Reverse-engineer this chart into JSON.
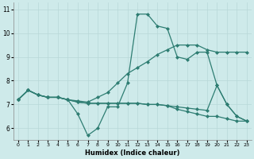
{
  "title": "",
  "xlabel": "Humidex (Indice chaleur)",
  "background_color": "#ceeaea",
  "line_color": "#2e7d72",
  "grid_color": "#b8d8d8",
  "xlim": [
    -0.5,
    23.5
  ],
  "ylim": [
    5.5,
    11.3
  ],
  "yticks": [
    6,
    7,
    8,
    9,
    10,
    11
  ],
  "xticks": [
    0,
    1,
    2,
    3,
    4,
    5,
    6,
    7,
    8,
    9,
    10,
    11,
    12,
    13,
    14,
    15,
    16,
    17,
    18,
    19,
    20,
    21,
    22,
    23
  ],
  "lines": [
    {
      "x": [
        0,
        1,
        2,
        3,
        4,
        5,
        6,
        7,
        8,
        9,
        10,
        11,
        12,
        13,
        14,
        15,
        16,
        17,
        18,
        19,
        20,
        21,
        22,
        23
      ],
      "y": [
        7.2,
        7.6,
        7.4,
        7.3,
        7.3,
        7.2,
        6.6,
        5.7,
        6.0,
        6.9,
        6.9,
        7.9,
        10.8,
        10.8,
        10.3,
        10.2,
        9.0,
        8.9,
        9.2,
        9.2,
        7.8,
        7.0,
        6.5,
        6.3
      ]
    },
    {
      "x": [
        0,
        1,
        2,
        3,
        4,
        5,
        6,
        7,
        8,
        9,
        10,
        11,
        12,
        13,
        14,
        15,
        16,
        17,
        18,
        19,
        20,
        21,
        22,
        23
      ],
      "y": [
        7.2,
        7.6,
        7.4,
        7.3,
        7.3,
        7.2,
        7.15,
        7.1,
        7.3,
        7.5,
        7.9,
        8.3,
        8.55,
        8.8,
        9.1,
        9.3,
        9.5,
        9.5,
        9.5,
        9.3,
        9.2,
        9.2,
        9.2,
        9.2
      ]
    },
    {
      "x": [
        0,
        1,
        2,
        3,
        4,
        5,
        6,
        7,
        8,
        9,
        10,
        11,
        12,
        13,
        14,
        15,
        16,
        17,
        18,
        19,
        20,
        21,
        22,
        23
      ],
      "y": [
        7.2,
        7.6,
        7.4,
        7.3,
        7.3,
        7.2,
        7.1,
        7.05,
        7.05,
        7.05,
        7.05,
        7.05,
        7.05,
        7.0,
        7.0,
        6.95,
        6.9,
        6.85,
        6.8,
        6.75,
        7.8,
        7.0,
        6.5,
        6.3
      ]
    },
    {
      "x": [
        0,
        1,
        2,
        3,
        4,
        5,
        6,
        7,
        8,
        9,
        10,
        11,
        12,
        13,
        14,
        15,
        16,
        17,
        18,
        19,
        20,
        21,
        22,
        23
      ],
      "y": [
        7.2,
        7.6,
        7.4,
        7.3,
        7.3,
        7.2,
        7.1,
        7.05,
        7.05,
        7.05,
        7.05,
        7.05,
        7.05,
        7.0,
        7.0,
        6.95,
        6.8,
        6.7,
        6.6,
        6.5,
        6.5,
        6.4,
        6.3,
        6.3
      ]
    }
  ]
}
